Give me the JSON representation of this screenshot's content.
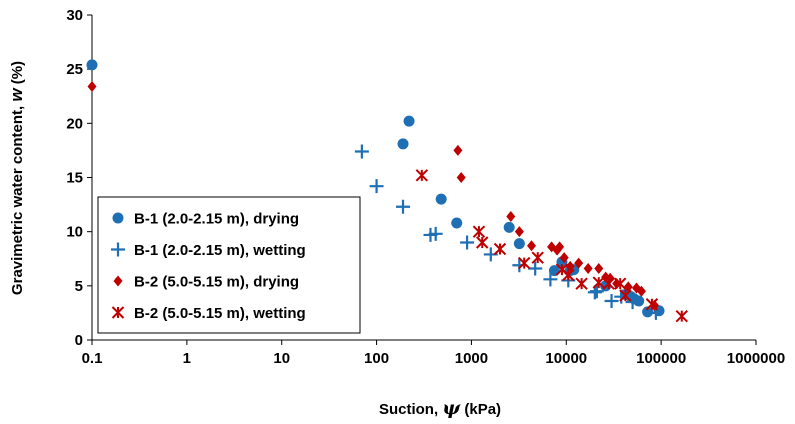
{
  "chart_data": {
    "type": "scatter",
    "title": "",
    "xlabel_prefix": "Suction, ",
    "xlabel_symbol": "ψ",
    "xlabel_suffix": " (kPa)",
    "ylabel_prefix": "Gravimetric water content, ",
    "ylabel_symbol": "w",
    "ylabel_suffix": " (%)",
    "xscale": "log",
    "xlim": [
      0.1,
      1000000
    ],
    "ylim": [
      0,
      30
    ],
    "x_ticks": [
      0.1,
      1,
      10,
      100,
      1000,
      10000,
      100000,
      1000000
    ],
    "x_tick_labels": [
      "0.1",
      "1",
      "10",
      "100",
      "1000",
      "10000",
      "100000",
      "1000000"
    ],
    "y_ticks": [
      0,
      5,
      10,
      15,
      20,
      25,
      30
    ],
    "y_tick_labels": [
      "0",
      "5",
      "10",
      "15",
      "20",
      "25",
      "30"
    ],
    "grid": false,
    "legend_position": "bottom-left",
    "series": [
      {
        "name": "B-1 (2.0-2.15 m), drying",
        "marker": "circle",
        "color": "#1F6FB4",
        "points": [
          [
            0.1,
            25.4
          ],
          [
            190,
            18.1
          ],
          [
            220,
            20.2
          ],
          [
            480,
            13.0
          ],
          [
            700,
            10.8
          ],
          [
            2500,
            10.4
          ],
          [
            3200,
            8.9
          ],
          [
            7500,
            6.4
          ],
          [
            9000,
            7.2
          ],
          [
            11000,
            6.4
          ],
          [
            12000,
            6.5
          ],
          [
            26000,
            5.0
          ],
          [
            42000,
            4.2
          ],
          [
            48000,
            4.0
          ],
          [
            52000,
            3.8
          ],
          [
            58000,
            3.6
          ],
          [
            72000,
            2.6
          ],
          [
            95000,
            2.7
          ]
        ]
      },
      {
        "name": "B-1 (2.0-2.15 m), wetting",
        "marker": "plus",
        "color": "#1F6FB4",
        "points": [
          [
            70,
            17.4
          ],
          [
            100,
            14.2
          ],
          [
            190,
            12.3
          ],
          [
            370,
            9.7
          ],
          [
            420,
            9.8
          ],
          [
            900,
            9.0
          ],
          [
            1600,
            7.9
          ],
          [
            3200,
            6.9
          ],
          [
            4700,
            6.6
          ],
          [
            6800,
            5.6
          ],
          [
            10500,
            5.5
          ],
          [
            20000,
            4.4
          ],
          [
            21000,
            4.5
          ],
          [
            30000,
            3.6
          ],
          [
            38000,
            4.0
          ],
          [
            50000,
            3.5
          ],
          [
            88000,
            2.5
          ]
        ]
      },
      {
        "name": "B-2 (5.0-5.15 m), drying",
        "marker": "diamond",
        "color": "#C00000",
        "points": [
          [
            0.1,
            23.4
          ],
          [
            720,
            17.5
          ],
          [
            780,
            15.0
          ],
          [
            2600,
            11.4
          ],
          [
            3200,
            10.0
          ],
          [
            4300,
            8.7
          ],
          [
            7000,
            8.6
          ],
          [
            8000,
            8.3
          ],
          [
            8500,
            8.6
          ],
          [
            9500,
            7.6
          ],
          [
            11000,
            6.8
          ],
          [
            13500,
            7.1
          ],
          [
            17000,
            6.6
          ],
          [
            22000,
            6.6
          ],
          [
            26000,
            5.8
          ],
          [
            29000,
            5.7
          ],
          [
            34000,
            5.2
          ],
          [
            45000,
            4.9
          ],
          [
            55000,
            4.8
          ],
          [
            62000,
            4.5
          ],
          [
            85000,
            3.2
          ]
        ]
      },
      {
        "name": "B-2 (5.0-5.15 m), wetting",
        "marker": "x",
        "color": "#C00000",
        "points": [
          [
            300,
            15.2
          ],
          [
            1200,
            10.0
          ],
          [
            1300,
            9.0
          ],
          [
            2000,
            8.4
          ],
          [
            3600,
            7.1
          ],
          [
            5000,
            7.6
          ],
          [
            9000,
            6.5
          ],
          [
            10500,
            6.0
          ],
          [
            14500,
            5.2
          ],
          [
            22000,
            5.3
          ],
          [
            28000,
            5.2
          ],
          [
            37000,
            5.2
          ],
          [
            42000,
            4.1
          ],
          [
            80000,
            3.3
          ],
          [
            165000,
            2.2
          ]
        ]
      }
    ]
  }
}
